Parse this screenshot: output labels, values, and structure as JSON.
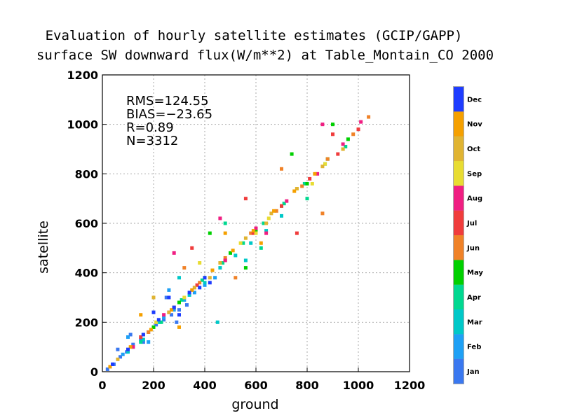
{
  "chart_data": {
    "type": "scatter",
    "title": "Evaluation of hourly satellite estimates (GCIP/GAPP)",
    "subtitle": "surface SW downward flux(W/m**2) at Table_Montain_CO 2000",
    "xlabel": "ground",
    "ylabel": "satellite",
    "xlim": [
      0,
      1200
    ],
    "ylim": [
      0,
      1200
    ],
    "x_ticks": [
      "0",
      "200",
      "400",
      "600",
      "800",
      "1000",
      "1200"
    ],
    "y_ticks": [
      "0",
      "200",
      "400",
      "600",
      "800",
      "1000",
      "1200"
    ],
    "grid": true,
    "stats": [
      "RMS=124.55",
      "BIAS=−23.65",
      "R=0.89",
      "N=3312"
    ],
    "colorbar": [
      {
        "month": "Jan",
        "color": "#3a78f0"
      },
      {
        "month": "Feb",
        "color": "#1ea0f5"
      },
      {
        "month": "Mar",
        "color": "#00c8c8"
      },
      {
        "month": "Apr",
        "color": "#00d890"
      },
      {
        "month": "May",
        "color": "#00d000"
      },
      {
        "month": "Jun",
        "color": "#f08228"
      },
      {
        "month": "Jul",
        "color": "#f03c3c"
      },
      {
        "month": "Aug",
        "color": "#f01e82"
      },
      {
        "month": "Sep",
        "color": "#e8dc32"
      },
      {
        "month": "Oct",
        "color": "#e0b432"
      },
      {
        "month": "Nov",
        "color": "#f5a000"
      },
      {
        "month": "Dec",
        "color": "#1e3cff"
      }
    ],
    "series": [
      {
        "month": "Jan",
        "x": [
          20,
          45,
          70,
          95,
          120,
          150,
          180,
          210,
          240,
          270,
          300,
          330,
          60,
          110,
          160,
          200,
          250,
          290
        ],
        "y": [
          10,
          30,
          60,
          80,
          110,
          130,
          160,
          190,
          210,
          230,
          250,
          270,
          90,
          150,
          120,
          240,
          300,
          200
        ]
      },
      {
        "month": "Feb",
        "x": [
          40,
          80,
          120,
          160,
          200,
          240,
          280,
          320,
          360,
          400,
          440,
          100,
          180,
          260
        ],
        "y": [
          30,
          70,
          100,
          150,
          180,
          220,
          250,
          290,
          320,
          350,
          380,
          140,
          120,
          330
        ]
      },
      {
        "month": "Mar",
        "x": [
          100,
          160,
          220,
          280,
          340,
          400,
          460,
          520,
          580,
          640,
          700,
          300,
          450,
          560
        ],
        "y": [
          80,
          130,
          200,
          260,
          310,
          360,
          420,
          470,
          520,
          570,
          630,
          380,
          200,
          450
        ]
      },
      {
        "month": "Apr",
        "x": [
          150,
          230,
          310,
          390,
          470,
          550,
          630,
          710,
          790,
          870,
          950,
          480,
          620,
          800
        ],
        "y": [
          120,
          200,
          290,
          370,
          440,
          520,
          600,
          680,
          760,
          840,
          910,
          600,
          500,
          700
        ]
      },
      {
        "month": "May",
        "x": [
          200,
          300,
          400,
          500,
          600,
          700,
          800,
          880,
          960,
          420,
          560,
          740,
          900
        ],
        "y": [
          180,
          280,
          380,
          480,
          570,
          670,
          760,
          860,
          940,
          560,
          420,
          880,
          1000
        ]
      },
      {
        "month": "Jun",
        "x": [
          180,
          280,
          380,
          480,
          580,
          680,
          780,
          880,
          980,
          1040,
          320,
          520,
          700,
          860
        ],
        "y": [
          160,
          260,
          360,
          460,
          560,
          650,
          750,
          860,
          960,
          1030,
          420,
          380,
          820,
          640
        ]
      },
      {
        "month": "Jul",
        "x": [
          150,
          260,
          370,
          480,
          590,
          700,
          810,
          920,
          1000,
          350,
          560,
          760,
          900
        ],
        "y": [
          140,
          240,
          350,
          450,
          560,
          670,
          780,
          880,
          980,
          500,
          700,
          560,
          960
        ]
      },
      {
        "month": "Aug",
        "x": [
          120,
          240,
          360,
          480,
          600,
          720,
          840,
          940,
          1010,
          280,
          460,
          640,
          860
        ],
        "y": [
          100,
          230,
          340,
          450,
          580,
          690,
          800,
          920,
          1010,
          480,
          620,
          560,
          1000
        ]
      },
      {
        "month": "Sep",
        "x": [
          100,
          210,
          320,
          430,
          540,
          650,
          760,
          870,
          940,
          380,
          600,
          820
        ],
        "y": [
          90,
          200,
          300,
          410,
          520,
          620,
          740,
          840,
          900,
          440,
          560,
          760
        ]
      },
      {
        "month": "Oct",
        "x": [
          60,
          160,
          260,
          360,
          460,
          560,
          660,
          760,
          860,
          940,
          200,
          420,
          640
        ],
        "y": [
          50,
          150,
          240,
          340,
          440,
          540,
          640,
          740,
          830,
          900,
          300,
          380,
          600
        ]
      },
      {
        "month": "Nov",
        "x": [
          30,
          110,
          190,
          270,
          350,
          430,
          510,
          590,
          670,
          750,
          830,
          150,
          300,
          480,
          620
        ],
        "y": [
          20,
          100,
          170,
          250,
          330,
          410,
          490,
          570,
          650,
          730,
          800,
          230,
          180,
          560,
          520
        ]
      },
      {
        "month": "Dec",
        "x": [
          40,
          100,
          160,
          220,
          280,
          340,
          400,
          200,
          300,
          380,
          260,
          420
        ],
        "y": [
          30,
          90,
          150,
          210,
          260,
          320,
          380,
          240,
          230,
          340,
          300,
          360
        ]
      }
    ]
  }
}
